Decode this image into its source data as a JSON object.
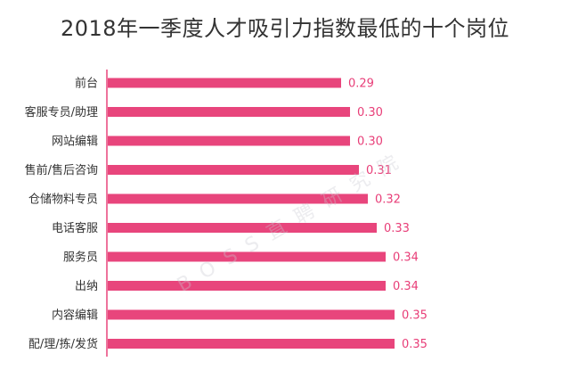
{
  "chart_data": {
    "type": "bar",
    "orientation": "horizontal",
    "title": "2018年一季度人才吸引力指数最低的十个岗位",
    "categories": [
      "前台",
      "客服专员/助理",
      "网站编辑",
      "售前/售后咨询",
      "仓储物料专员",
      "电话客服",
      "服务员",
      "出纳",
      "内容编辑",
      "配/理/拣/发货"
    ],
    "values": [
      0.29,
      0.3,
      0.3,
      0.31,
      0.32,
      0.33,
      0.34,
      0.34,
      0.35,
      0.35
    ],
    "value_labels": [
      "0.29",
      "0.30",
      "0.30",
      "0.31",
      "0.32",
      "0.33",
      "0.34",
      "0.34",
      "0.35",
      "0.35"
    ],
    "xlabel": "",
    "ylabel": "",
    "grid": false,
    "bar_color": "#e8457c",
    "axis_color": "#e8457c"
  },
  "watermark": "BOSS直聘研究院"
}
